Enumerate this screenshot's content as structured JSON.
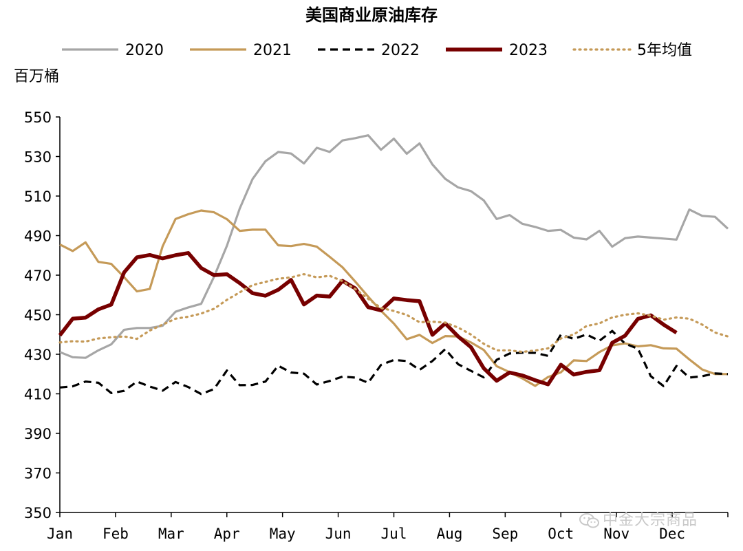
{
  "chart_data": {
    "type": "line",
    "title": "美国商业原油库存",
    "ylabel": "百万桶",
    "ylim": [
      350,
      550
    ],
    "yticks": [
      350,
      370,
      390,
      410,
      430,
      450,
      470,
      490,
      510,
      530,
      550
    ],
    "x_tick_labels": [
      "Jan",
      "Feb",
      "Mar",
      "Apr",
      "May",
      "Jun",
      "Jul",
      "Aug",
      "Sep",
      "Oct",
      "Nov",
      "Dec"
    ],
    "x_unit": "week",
    "xlim": [
      1,
      53
    ],
    "legend_position": "top",
    "series": [
      {
        "name": "2020",
        "color": "#a6a6a6",
        "style": "solid",
        "values": [
          431.1,
          428.5,
          428.2,
          432.0,
          435.0,
          442.4,
          443.3,
          443.3,
          444.4,
          451.5,
          453.7,
          455.5,
          469.2,
          484.8,
          503.6,
          518.6,
          527.6,
          532.3,
          531.5,
          526.5,
          534.4,
          532.3,
          538.1,
          539.3,
          540.7,
          533.4,
          539.0,
          531.4,
          536.6,
          526.0,
          518.7,
          514.4,
          512.5,
          507.8,
          498.4,
          500.4,
          496.0,
          494.4,
          492.4,
          492.9,
          489.0,
          488.1,
          492.4,
          484.4,
          488.7,
          489.5,
          489.0,
          488.5,
          488.0,
          503.2,
          500.0,
          499.5,
          493.5
        ]
      },
      {
        "name": "2021",
        "color": "#c59a58",
        "style": "solid",
        "values": [
          485.5,
          482.2,
          486.6,
          476.7,
          475.7,
          469.0,
          461.8,
          463.0,
          484.6,
          498.4,
          500.8,
          502.7,
          501.8,
          498.3,
          492.4,
          493.0,
          493.0,
          485.1,
          484.7,
          485.8,
          484.4,
          479.3,
          474.0,
          466.7,
          459.1,
          452.0,
          445.5,
          437.6,
          439.8,
          435.7,
          439.2,
          439.0,
          436.0,
          432.2,
          424.0,
          421.0,
          417.8,
          414.0,
          418.5,
          420.9,
          426.9,
          426.6,
          431.1,
          434.5,
          435.5,
          434.0,
          434.6,
          433.0,
          432.8,
          427.4,
          422.3,
          420.0,
          420.0
        ]
      },
      {
        "name": "2022",
        "color": "#000000",
        "style": "dashed",
        "values": [
          413.2,
          413.8,
          416.2,
          415.6,
          410.4,
          411.5,
          416.2,
          413.7,
          411.6,
          416.0,
          413.4,
          409.9,
          412.4,
          421.8,
          414.4,
          414.5,
          416.2,
          424.2,
          420.8,
          420.2,
          414.7,
          416.5,
          418.7,
          418.2,
          415.6,
          424.6,
          427.1,
          426.6,
          422.1,
          426.6,
          432.6,
          425.0,
          421.6,
          418.3,
          427.2,
          430.4,
          430.8,
          430.7,
          429.2,
          439.9,
          437.8,
          440.0,
          436.8,
          441.8,
          435.4,
          432.8,
          418.9,
          413.9,
          424.1,
          418.2,
          418.9,
          420.3,
          420.0
        ]
      },
      {
        "name": "2023",
        "color": "#770000",
        "style": "solid",
        "values": [
          439.6,
          448.0,
          448.5,
          452.7,
          455.1,
          471.4,
          479.0,
          480.2,
          478.5,
          480.1,
          481.2,
          473.6,
          470.0,
          470.5,
          466.0,
          460.9,
          459.6,
          462.6,
          467.6,
          455.2,
          459.7,
          459.2,
          467.1,
          463.3,
          453.8,
          452.2,
          458.2,
          457.4,
          456.8,
          439.8,
          445.6,
          439.0,
          433.6,
          422.9,
          416.6,
          420.8,
          419.3,
          416.9,
          414.8,
          424.7,
          419.7,
          421.1,
          421.9,
          435.8,
          439.4,
          447.9,
          449.7,
          445.0,
          440.9,
          null,
          null,
          null,
          null
        ]
      },
      {
        "name": "5年均值",
        "color": "#c59a58",
        "style": "dotted",
        "values": [
          436.0,
          436.6,
          436.4,
          438.0,
          438.6,
          439.0,
          437.8,
          442.0,
          445.0,
          448.0,
          449.0,
          450.6,
          453.0,
          457.5,
          461.3,
          465.0,
          466.6,
          468.2,
          468.9,
          470.5,
          468.9,
          469.7,
          467.0,
          463.0,
          458.0,
          453.4,
          451.9,
          449.9,
          446.2,
          446.5,
          446.0,
          443.5,
          440.0,
          435.3,
          432.0,
          432.0,
          431.2,
          431.9,
          433.0,
          438.0,
          440.0,
          444.3,
          445.6,
          448.6,
          450.0,
          450.7,
          449.5,
          447.5,
          448.6,
          448.0,
          445.0,
          441.0,
          439.0
        ]
      }
    ]
  },
  "watermark": "中金大宗商品"
}
